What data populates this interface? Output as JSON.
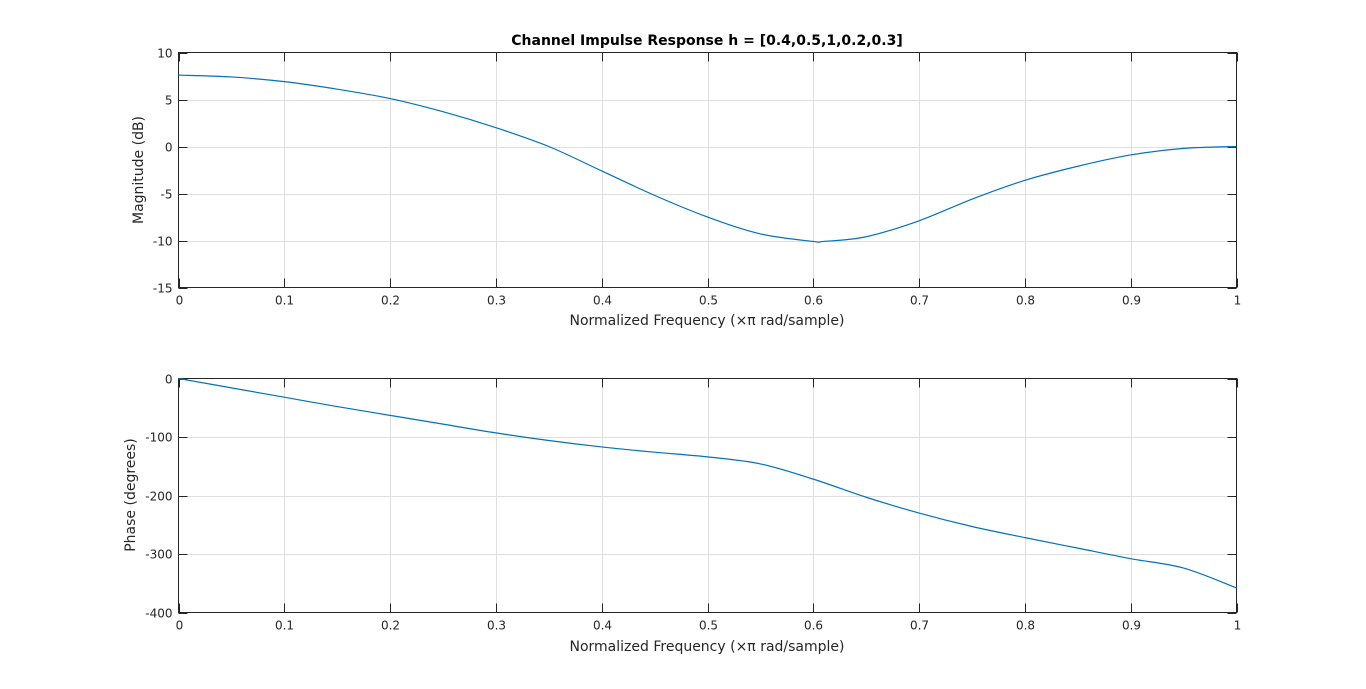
{
  "figure": {
    "title": "Channel Impulse Response h = [0.4,0.5,1,0.2,0.3]"
  },
  "chart_data": [
    {
      "type": "line",
      "title": "Channel Impulse Response h = [0.4,0.5,1,0.2,0.3]",
      "xlabel": "Normalized Frequency  (×π rad/sample)",
      "ylabel": "Magnitude (dB)",
      "xlim": [
        0,
        1
      ],
      "ylim": [
        -15,
        10
      ],
      "xticks": [
        0,
        0.1,
        0.2,
        0.3,
        0.4,
        0.5,
        0.6,
        0.7,
        0.8,
        0.9,
        1
      ],
      "xtick_labels": [
        "0",
        "0.1",
        "0.2",
        "0.3",
        "0.4",
        "0.5",
        "0.6",
        "0.7",
        "0.8",
        "0.9",
        "1"
      ],
      "yticks": [
        -15,
        -10,
        -5,
        0,
        5,
        10
      ],
      "ytick_labels": [
        "-15",
        "-10",
        "-5",
        "0",
        "5",
        "10"
      ],
      "grid": true,
      "color": "#0072bd",
      "x": [
        0,
        0.05,
        0.1,
        0.15,
        0.2,
        0.25,
        0.3,
        0.35,
        0.4,
        0.45,
        0.5,
        0.55,
        0.6,
        0.61,
        0.65,
        0.7,
        0.75,
        0.8,
        0.85,
        0.9,
        0.95,
        1
      ],
      "y": [
        7.6,
        7.4,
        6.9,
        6.1,
        5.1,
        3.7,
        2.0,
        0.0,
        -2.6,
        -5.2,
        -7.5,
        -9.3,
        -10.1,
        -10.1,
        -9.6,
        -7.9,
        -5.6,
        -3.6,
        -2.1,
        -0.9,
        -0.2,
        0.0
      ]
    },
    {
      "type": "line",
      "title": "",
      "xlabel": "Normalized Frequency  (×π rad/sample)",
      "ylabel": "Phase (degrees)",
      "xlim": [
        0,
        1
      ],
      "ylim": [
        -400,
        0
      ],
      "xticks": [
        0,
        0.1,
        0.2,
        0.3,
        0.4,
        0.5,
        0.6,
        0.7,
        0.8,
        0.9,
        1
      ],
      "xtick_labels": [
        "0",
        "0.1",
        "0.2",
        "0.3",
        "0.4",
        "0.5",
        "0.6",
        "0.7",
        "0.8",
        "0.9",
        "1"
      ],
      "yticks": [
        -400,
        -300,
        -200,
        -100,
        0
      ],
      "ytick_labels": [
        "-400",
        "-300",
        "-200",
        "-100",
        "0"
      ],
      "grid": true,
      "color": "#0072bd",
      "x": [
        0,
        0.05,
        0.1,
        0.15,
        0.2,
        0.25,
        0.3,
        0.35,
        0.4,
        0.45,
        0.5,
        0.55,
        0.6,
        0.65,
        0.7,
        0.75,
        0.8,
        0.85,
        0.9,
        0.95,
        1
      ],
      "y": [
        0,
        -16,
        -32,
        -48,
        -63,
        -78,
        -93,
        -106,
        -117,
        -126,
        -134,
        -146,
        -172,
        -203,
        -230,
        -253,
        -272,
        -290,
        -308,
        -324,
        -358
      ]
    }
  ]
}
